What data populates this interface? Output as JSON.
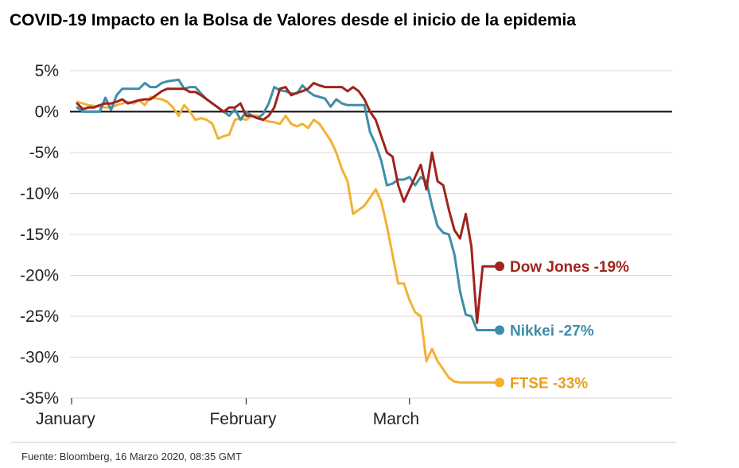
{
  "chart_data": {
    "type": "line",
    "title": "COVID-19 Impacto en la Bolsa de Valores desde el inicio de la epidemia",
    "source": "Fuente: Bloomberg, 16 Marzo 2020, 08:35 GMT",
    "ylim": [
      -35,
      5
    ],
    "yticks": [
      "5%",
      "0%",
      "-5%",
      "-10%",
      "-15%",
      "-20%",
      "-25%",
      "-30%",
      "-35%"
    ],
    "ytick_values": [
      5,
      0,
      -5,
      -10,
      -15,
      -20,
      -25,
      -30,
      -35
    ],
    "xlim": [
      0,
      76
    ],
    "xticks": [
      {
        "label": "January",
        "x": 0
      },
      {
        "label": "February",
        "x": 31
      },
      {
        "label": "March",
        "x": 60
      }
    ],
    "grid": true,
    "colors": {
      "dow": "#a0231c",
      "nikkei": "#3d8ea8",
      "ftse": "#f3b132",
      "zero_line": "#111111",
      "grid": "#d9d9d9"
    },
    "series": [
      {
        "key": "dow",
        "label": "Dow Jones -19%",
        "end_value": -19,
        "points": [
          [
            1,
            1
          ],
          [
            2,
            0.3
          ],
          [
            3,
            0.5
          ],
          [
            4,
            0.5
          ],
          [
            5,
            0.8
          ],
          [
            6,
            1
          ],
          [
            7,
            1
          ],
          [
            8,
            1.2
          ],
          [
            9,
            1.5
          ],
          [
            10,
            1
          ],
          [
            11,
            1.2
          ],
          [
            12,
            1.4
          ],
          [
            13,
            1.5
          ],
          [
            14,
            1.5
          ],
          [
            15,
            2
          ],
          [
            16,
            2.5
          ],
          [
            17,
            2.8
          ],
          [
            18,
            2.8
          ],
          [
            19,
            2.8
          ],
          [
            20,
            2.8
          ],
          [
            21,
            2.4
          ],
          [
            22,
            2.4
          ],
          [
            23,
            2
          ],
          [
            24,
            1.5
          ],
          [
            25,
            1
          ],
          [
            26,
            0.5
          ],
          [
            27,
            0
          ],
          [
            28,
            0.5
          ],
          [
            29,
            0.5
          ],
          [
            30,
            1
          ],
          [
            31,
            -0.5
          ],
          [
            32,
            -0.5
          ],
          [
            33,
            -0.8
          ],
          [
            34,
            -1
          ],
          [
            35,
            -0.5
          ],
          [
            36,
            0.5
          ],
          [
            37,
            2.8
          ],
          [
            38,
            3
          ],
          [
            39,
            2
          ],
          [
            40,
            2.3
          ],
          [
            41,
            2.5
          ],
          [
            42,
            2.8
          ],
          [
            43,
            3.5
          ],
          [
            44,
            3.2
          ],
          [
            45,
            3
          ],
          [
            46,
            3
          ],
          [
            47,
            3
          ],
          [
            48,
            3
          ],
          [
            49,
            2.5
          ],
          [
            50,
            3
          ],
          [
            51,
            2.5
          ],
          [
            52,
            1.5
          ],
          [
            53,
            0
          ],
          [
            54,
            -1
          ],
          [
            55,
            -3
          ],
          [
            56,
            -5
          ],
          [
            57,
            -5.5
          ],
          [
            58,
            -9
          ],
          [
            59,
            -11
          ],
          [
            60,
            -9.5
          ],
          [
            61,
            -8
          ],
          [
            62,
            -6.5
          ],
          [
            63,
            -9.5
          ],
          [
            64,
            -5
          ],
          [
            65,
            -8.5
          ],
          [
            66,
            -9
          ],
          [
            67,
            -12
          ],
          [
            68,
            -14.5
          ],
          [
            69,
            -15.5
          ],
          [
            70,
            -12.5
          ],
          [
            71,
            -16.5
          ],
          [
            72,
            -25.8
          ],
          [
            73,
            -18.9
          ],
          [
            74,
            -18.9
          ],
          [
            75,
            -18.9
          ],
          [
            76,
            -18.9
          ]
        ]
      },
      {
        "key": "nikkei",
        "label": "Nikkei -27%",
        "end_value": -27,
        "points": [
          [
            1,
            0.5
          ],
          [
            2,
            0
          ],
          [
            3,
            0
          ],
          [
            4,
            0
          ],
          [
            5,
            0
          ],
          [
            6,
            1.7
          ],
          [
            7,
            0.2
          ],
          [
            8,
            2
          ],
          [
            9,
            2.8
          ],
          [
            10,
            2.8
          ],
          [
            11,
            2.8
          ],
          [
            12,
            2.8
          ],
          [
            13,
            3.5
          ],
          [
            14,
            3
          ],
          [
            15,
            3
          ],
          [
            16,
            3.5
          ],
          [
            17,
            3.7
          ],
          [
            18,
            3.8
          ],
          [
            19,
            3.9
          ],
          [
            20,
            2.8
          ],
          [
            21,
            3
          ],
          [
            22,
            3
          ],
          [
            23,
            2.2
          ],
          [
            24,
            1.5
          ],
          [
            25,
            1
          ],
          [
            26,
            0.5
          ],
          [
            27,
            0
          ],
          [
            28,
            -0.5
          ],
          [
            29,
            0.3
          ],
          [
            30,
            -1
          ],
          [
            31,
            0
          ],
          [
            32,
            -0.5
          ],
          [
            33,
            -0.8
          ],
          [
            34,
            -0.3
          ],
          [
            35,
            1
          ],
          [
            36,
            3
          ],
          [
            37,
            2.6
          ],
          [
            38,
            2.5
          ],
          [
            39,
            2.2
          ],
          [
            40,
            2.2
          ],
          [
            41,
            3.2
          ],
          [
            42,
            2.5
          ],
          [
            43,
            2
          ],
          [
            44,
            1.8
          ],
          [
            45,
            1.6
          ],
          [
            46,
            0.6
          ],
          [
            47,
            1.5
          ],
          [
            48,
            1
          ],
          [
            49,
            0.8
          ],
          [
            50,
            0.8
          ],
          [
            51,
            0.8
          ],
          [
            52,
            0.8
          ],
          [
            53,
            -2.5
          ],
          [
            54,
            -4
          ],
          [
            55,
            -6
          ],
          [
            56,
            -9
          ],
          [
            57,
            -8.8
          ],
          [
            58,
            -8.3
          ],
          [
            59,
            -8.3
          ],
          [
            60,
            -8
          ],
          [
            61,
            -9
          ],
          [
            62,
            -8
          ],
          [
            63,
            -8.5
          ],
          [
            64,
            -11.5
          ],
          [
            65,
            -14
          ],
          [
            66,
            -14.8
          ],
          [
            67,
            -15
          ],
          [
            68,
            -17.5
          ],
          [
            69,
            -22
          ],
          [
            70,
            -24.8
          ],
          [
            71,
            -25
          ],
          [
            72,
            -26.7
          ],
          [
            73,
            -26.7
          ],
          [
            74,
            -26.7
          ],
          [
            75,
            -26.7
          ],
          [
            76,
            -26.7
          ]
        ]
      },
      {
        "key": "ftse",
        "label": "FTSE -33%",
        "end_value": -33,
        "points": [
          [
            1,
            1.2
          ],
          [
            2,
            1
          ],
          [
            3,
            0.8
          ],
          [
            4,
            0.7
          ],
          [
            5,
            0.6
          ],
          [
            6,
            0.5
          ],
          [
            7,
            0.5
          ],
          [
            8,
            0.8
          ],
          [
            9,
            1
          ],
          [
            10,
            1.2
          ],
          [
            11,
            1
          ],
          [
            12,
            1.4
          ],
          [
            13,
            0.8
          ],
          [
            14,
            1.8
          ],
          [
            15,
            1.6
          ],
          [
            16,
            1.5
          ],
          [
            17,
            1.2
          ],
          [
            18,
            0.5
          ],
          [
            19,
            -0.5
          ],
          [
            20,
            0.8
          ],
          [
            21,
            0
          ],
          [
            22,
            -1
          ],
          [
            23,
            -0.8
          ],
          [
            24,
            -1
          ],
          [
            25,
            -1.5
          ],
          [
            26,
            -3.3
          ],
          [
            27,
            -3
          ],
          [
            28,
            -2.8
          ],
          [
            29,
            -1
          ],
          [
            30,
            -0.8
          ],
          [
            31,
            -1
          ],
          [
            32,
            -0.5
          ],
          [
            33,
            -0.5
          ],
          [
            34,
            -1
          ],
          [
            35,
            -1.2
          ],
          [
            36,
            -1.3
          ],
          [
            37,
            -1.5
          ],
          [
            38,
            -0.5
          ],
          [
            39,
            -1.5
          ],
          [
            40,
            -1.8
          ],
          [
            41,
            -1.5
          ],
          [
            42,
            -2
          ],
          [
            43,
            -1
          ],
          [
            44,
            -1.5
          ],
          [
            45,
            -2.5
          ],
          [
            46,
            -3.5
          ],
          [
            47,
            -5
          ],
          [
            48,
            -7
          ],
          [
            49,
            -8.5
          ],
          [
            50,
            -12.5
          ],
          [
            51,
            -12
          ],
          [
            52,
            -11.5
          ],
          [
            53,
            -10.5
          ],
          [
            54,
            -9.5
          ],
          [
            55,
            -11
          ],
          [
            56,
            -14
          ],
          [
            57,
            -17.5
          ],
          [
            58,
            -21
          ],
          [
            59,
            -21
          ],
          [
            60,
            -23
          ],
          [
            61,
            -24.5
          ],
          [
            62,
            -25
          ],
          [
            63,
            -30.5
          ],
          [
            64,
            -29
          ],
          [
            65,
            -30.5
          ],
          [
            66,
            -31.5
          ],
          [
            67,
            -32.5
          ],
          [
            68,
            -33
          ],
          [
            69,
            -33.1
          ],
          [
            70,
            -33.1
          ],
          [
            71,
            -33.1
          ],
          [
            72,
            -33.1
          ],
          [
            73,
            -33.1
          ],
          [
            74,
            -33.1
          ],
          [
            75,
            -33.1
          ],
          [
            76,
            -33.1
          ]
        ]
      }
    ]
  }
}
